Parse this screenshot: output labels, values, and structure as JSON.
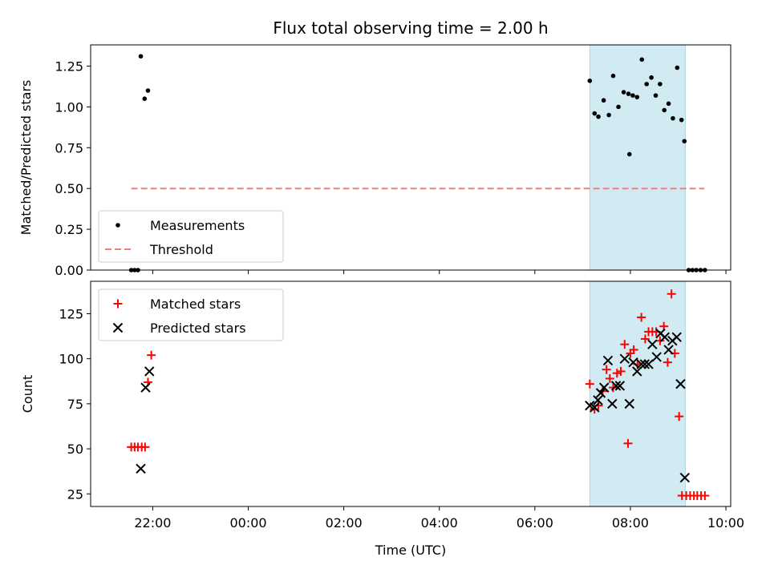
{
  "chart_data": {
    "title": "Flux total observing time = 2.00 h",
    "xlabel": "Time (UTC)",
    "x_ticks": [
      "22:00",
      "00:00",
      "02:00",
      "04:00",
      "06:00",
      "08:00",
      "10:00"
    ],
    "x_tick_hours": [
      22,
      24,
      26,
      28,
      30,
      32,
      34
    ],
    "x_range_hours": [
      20.7,
      34.1
    ],
    "shaded_region_hours": [
      31.15,
      33.15
    ],
    "shade_color": "#add8e6",
    "panels": [
      {
        "type": "scatter",
        "ylabel": "Matched/Predicted stars",
        "ylim": [
          0,
          1.38
        ],
        "y_ticks": [
          "0.00",
          "0.25",
          "0.50",
          "0.75",
          "1.00",
          "1.25"
        ],
        "y_tick_values": [
          0,
          0.25,
          0.5,
          0.75,
          1.0,
          1.25
        ],
        "legend": {
          "location": "lower-left",
          "entries": [
            "Measurements",
            "Threshold"
          ]
        },
        "series": [
          {
            "name": "Measurements",
            "marker": "dot",
            "color": "#000000",
            "x": [
              21.55,
              21.62,
              21.69,
              21.75,
              21.83,
              21.9,
              31.15,
              31.25,
              31.33,
              31.44,
              31.55,
              31.64,
              31.75,
              31.86,
              31.96,
              32.05,
              32.14,
              32.24,
              32.34,
              32.44,
              32.53,
              32.62,
              32.71,
              32.8,
              32.89,
              32.98,
              33.07,
              33.13,
              33.22,
              33.3,
              33.38,
              33.47,
              33.56,
              31.98
            ],
            "y": [
              0,
              0,
              0,
              1.31,
              1.05,
              1.1,
              1.16,
              0.96,
              0.94,
              1.04,
              0.95,
              1.19,
              1.0,
              1.09,
              1.08,
              1.07,
              1.06,
              1.29,
              1.14,
              1.18,
              1.07,
              1.14,
              0.98,
              1.02,
              0.93,
              1.24,
              0.92,
              0.79,
              0,
              0,
              0,
              0,
              0,
              0.71
            ]
          },
          {
            "name": "Threshold",
            "line": "dashed",
            "color": "#f08080",
            "x": [
              21.55,
              33.55
            ],
            "y": [
              0.5,
              0.5
            ]
          }
        ]
      },
      {
        "type": "scatter",
        "ylabel": "Count",
        "ylim": [
          18,
          143
        ],
        "y_ticks": [
          "25",
          "50",
          "75",
          "100",
          "125"
        ],
        "y_tick_values": [
          25,
          50,
          75,
          100,
          125
        ],
        "legend": {
          "location": "upper-left",
          "entries": [
            "Matched stars",
            "Predicted stars"
          ]
        },
        "series": [
          {
            "name": "Matched stars",
            "marker": "plus",
            "color": "#ff0000",
            "x": [
              21.55,
              21.62,
              21.69,
              21.77,
              21.84,
              21.9,
              21.97,
              31.15,
              31.25,
              31.33,
              31.42,
              31.5,
              31.57,
              31.64,
              31.72,
              31.8,
              31.88,
              31.95,
              32.0,
              32.07,
              32.15,
              32.23,
              32.31,
              32.38,
              32.46,
              32.54,
              32.62,
              32.7,
              32.78,
              32.86,
              32.93,
              33.02,
              33.08,
              33.17,
              33.25,
              33.33,
              33.4,
              33.48,
              33.56
            ],
            "y": [
              51,
              51,
              51,
              51,
              51,
              87,
              102,
              86,
              72,
              74,
              82,
              94,
              89,
              84,
              92,
              93,
              108,
              53,
              103,
              105,
              97,
              123,
              111,
              115,
              115,
              115,
              110,
              118,
              98,
              136,
              103,
              68,
              24,
              24,
              24,
              24,
              24,
              24,
              24
            ]
          },
          {
            "name": "Predicted stars",
            "marker": "x",
            "color": "#000000",
            "x": [
              21.75,
              21.85,
              21.93,
              31.15,
              31.25,
              31.32,
              31.38,
              31.45,
              31.53,
              31.62,
              31.7,
              31.78,
              31.88,
              31.98,
              32.06,
              32.14,
              32.23,
              32.3,
              32.38,
              32.46,
              32.55,
              32.63,
              32.72,
              32.8,
              32.88,
              32.97,
              33.05,
              33.14
            ],
            "y": [
              39,
              84,
              93,
              74,
              73,
              77,
              81,
              84,
              99,
              75,
              85,
              85,
              100,
              75,
              98,
              93,
              97,
              97,
              97,
              108,
              101,
              114,
              112,
              105,
              110,
              112,
              86,
              34
            ]
          }
        ]
      }
    ]
  }
}
